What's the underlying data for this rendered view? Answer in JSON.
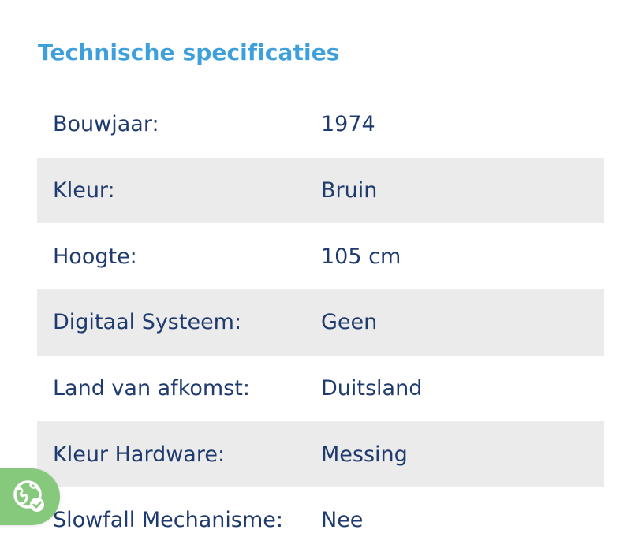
{
  "section": {
    "title": "Technische specificaties"
  },
  "specs": [
    {
      "label": "Bouwjaar:",
      "value": "1974"
    },
    {
      "label": "Kleur:",
      "value": "Bruin"
    },
    {
      "label": "Hoogte:",
      "value": "105 cm"
    },
    {
      "label": "Digitaal Systeem:",
      "value": "Geen"
    },
    {
      "label": "Land van afkomst:",
      "value": "Duitsland"
    },
    {
      "label": "Kleur Hardware:",
      "value": "Messing"
    },
    {
      "label": "Slowfall Mechanisme:",
      "value": "Nee"
    }
  ],
  "privacy_widget": {
    "icon": "globe-check-icon"
  },
  "colors": {
    "title": "#3da0dc",
    "text": "#1f3a6e",
    "stripe": "#ebebeb",
    "widget": "#86c97c"
  }
}
